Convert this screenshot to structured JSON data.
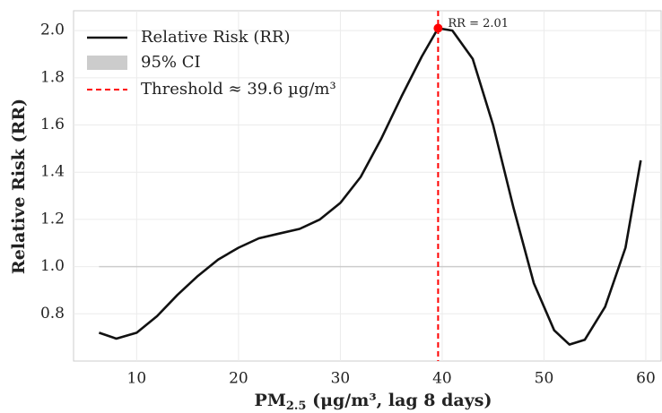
{
  "chart_data": {
    "type": "line",
    "xlabel": {
      "main": "PM",
      "sub": "2.5",
      "rest": " (μg/m³, lag 8 days)"
    },
    "ylabel": "Relative Risk (RR)",
    "xlim": [
      3.8,
      61.5
    ],
    "ylim": [
      0.6,
      2.084
    ],
    "xticks": [
      10,
      20,
      30,
      40,
      50,
      60
    ],
    "yticks": [
      {
        "value": 0.8,
        "label": "0.8"
      },
      {
        "value": 1.0,
        "label": "1.0"
      },
      {
        "value": 1.2,
        "label": "1.2"
      },
      {
        "value": 1.4,
        "label": "1.4"
      },
      {
        "value": 1.6,
        "label": "1.6"
      },
      {
        "value": 1.8,
        "label": "1.8"
      },
      {
        "value": 2.0,
        "label": "2.0"
      }
    ],
    "grid": true,
    "series": [
      {
        "name": "Relative Risk (RR)",
        "color": "#111111",
        "x": [
          6.3,
          8,
          10,
          12,
          14,
          16,
          18,
          20,
          22,
          24,
          26,
          28,
          30,
          32,
          34,
          36,
          38,
          39.6,
          41,
          43,
          45,
          47,
          49,
          51,
          52.5,
          54,
          56,
          58,
          59.5
        ],
        "values": [
          0.72,
          0.695,
          0.72,
          0.79,
          0.88,
          0.96,
          1.03,
          1.08,
          1.12,
          1.14,
          1.16,
          1.2,
          1.27,
          1.38,
          1.54,
          1.72,
          1.89,
          2.01,
          2.0,
          1.88,
          1.6,
          1.25,
          0.93,
          0.73,
          0.67,
          0.69,
          0.83,
          1.08,
          1.45
        ]
      }
    ],
    "ci": {
      "name": "95% CI",
      "color": "#cccccc",
      "y": 1.0,
      "x": [
        6.3,
        59.5
      ]
    },
    "threshold": {
      "name": "Threshold ≈ 39.6 µg/m³",
      "color": "#ff0000",
      "x": 39.6,
      "rr": 2.01,
      "annotation": "RR = 2.01"
    },
    "legend": "upper left"
  }
}
